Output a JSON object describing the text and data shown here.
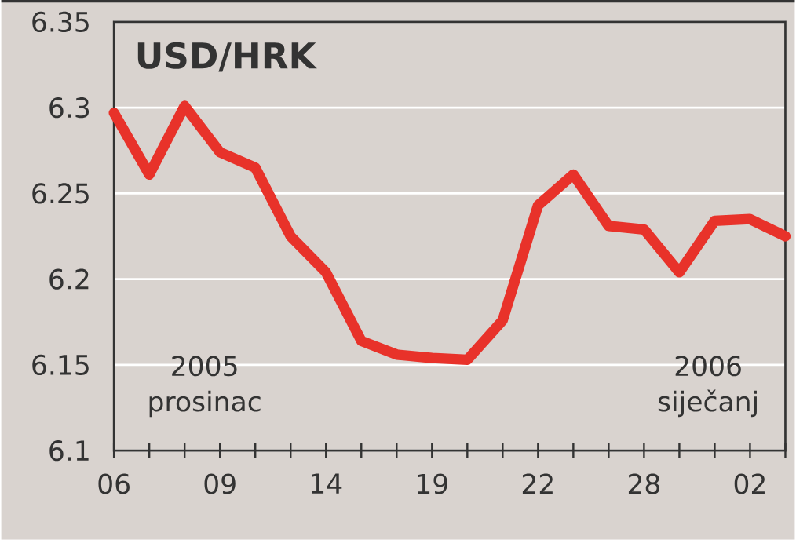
{
  "chart_data": {
    "type": "line",
    "title": "USD/HRK",
    "categories": [
      "06",
      null,
      null,
      "09",
      null,
      null,
      "14",
      null,
      null,
      "19",
      null,
      null,
      "22",
      null,
      null,
      "28",
      null,
      null,
      "02",
      null
    ],
    "values": [
      6.297,
      6.261,
      6.301,
      6.274,
      6.265,
      6.225,
      6.204,
      6.164,
      6.156,
      6.154,
      6.153,
      6.176,
      6.243,
      6.261,
      6.231,
      6.229,
      6.204,
      6.234,
      6.235,
      6.225
    ],
    "color": "#e8322a",
    "ylim": [
      6.1,
      6.35
    ],
    "yticks": [
      6.1,
      6.15,
      6.2,
      6.25,
      6.3,
      6.35
    ],
    "grid": "y",
    "marker": "none",
    "line_style": "solid",
    "annotations": [
      "2005 prosinac",
      "2006 siječanj"
    ]
  }
}
